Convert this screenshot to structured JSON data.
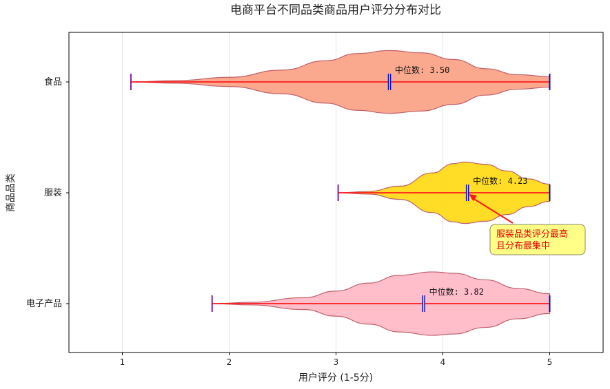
{
  "chart_data": {
    "type": "violin",
    "orientation": "horizontal",
    "title": "电商平台不同品类商品用户评分分布对比",
    "xlabel": "用户评分 (1-5分)",
    "ylabel": "商品品类",
    "xlim": [
      0.5,
      5.5
    ],
    "x_ticks": [
      1,
      2,
      3,
      4,
      5
    ],
    "grid": "x",
    "categories": [
      "食品",
      "服装",
      "电子产品"
    ],
    "series": [
      {
        "category": "食品",
        "color": "#fa9a7a",
        "min": 1.08,
        "max": 5.0,
        "median": 3.5,
        "median_label": "中位数: 3.50",
        "density": [
          [
            1.08,
            0.0
          ],
          [
            1.5,
            0.04
          ],
          [
            2.0,
            0.14
          ],
          [
            2.5,
            0.36
          ],
          [
            2.9,
            0.64
          ],
          [
            3.2,
            0.86
          ],
          [
            3.5,
            0.95
          ],
          [
            3.8,
            0.88
          ],
          [
            4.1,
            0.68
          ],
          [
            4.4,
            0.4
          ],
          [
            4.7,
            0.22
          ],
          [
            5.0,
            0.16
          ]
        ]
      },
      {
        "category": "服装",
        "color": "#ffd700",
        "min": 3.02,
        "max": 5.0,
        "median": 4.23,
        "median_label": "中位数: 4.23",
        "density": [
          [
            3.02,
            0.0
          ],
          [
            3.3,
            0.04
          ],
          [
            3.6,
            0.2
          ],
          [
            3.9,
            0.6
          ],
          [
            4.1,
            0.88
          ],
          [
            4.2,
            0.93
          ],
          [
            4.4,
            0.86
          ],
          [
            4.6,
            0.66
          ],
          [
            4.8,
            0.42
          ],
          [
            5.0,
            0.26
          ]
        ]
      },
      {
        "category": "电子产品",
        "color": "#ffb3c1",
        "min": 1.84,
        "max": 5.0,
        "median": 3.82,
        "median_label": "中位数: 3.82",
        "density": [
          [
            1.84,
            0.0
          ],
          [
            2.2,
            0.04
          ],
          [
            2.7,
            0.18
          ],
          [
            3.0,
            0.38
          ],
          [
            3.3,
            0.62
          ],
          [
            3.6,
            0.86
          ],
          [
            3.9,
            0.96
          ],
          [
            4.1,
            0.92
          ],
          [
            4.4,
            0.72
          ],
          [
            4.7,
            0.46
          ],
          [
            5.0,
            0.3
          ]
        ]
      }
    ],
    "annotation": {
      "text_lines": [
        "服装品类评分最高",
        "且分布最集中"
      ],
      "target_category": "服装",
      "target_x": 4.23
    }
  }
}
